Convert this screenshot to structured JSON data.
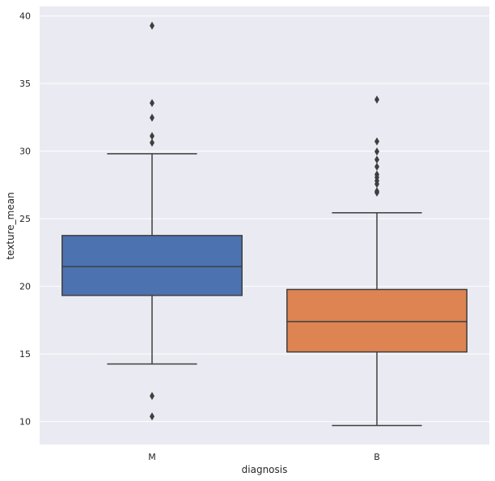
{
  "chart_data": {
    "type": "box",
    "title": "",
    "xlabel": "diagnosis",
    "ylabel": "texture_mean",
    "categories": [
      "M",
      "B"
    ],
    "ylim": [
      8.3,
      40.7
    ],
    "yticks": [
      10,
      15,
      20,
      25,
      30,
      35,
      40
    ],
    "grid": true,
    "colors": {
      "M": "#4c72b0",
      "B": "#dd8452",
      "background": "#eaeaf2",
      "grid": "#ffffff",
      "line": "#3f3f3f"
    },
    "series": [
      {
        "category": "M",
        "whisker_low": 14.26,
        "q1": 19.33,
        "median": 21.46,
        "q3": 23.76,
        "whisker_high": 29.81,
        "outliers": [
          39.28,
          33.56,
          32.47,
          31.12,
          30.62,
          11.89,
          10.38
        ]
      },
      {
        "category": "B",
        "whisker_low": 9.71,
        "q1": 15.15,
        "median": 17.39,
        "q3": 19.77,
        "whisker_high": 25.44,
        "outliers": [
          33.81,
          30.72,
          29.97,
          29.37,
          28.85,
          28.27,
          28.06,
          27.81,
          27.57,
          27.04,
          26.93
        ]
      }
    ]
  }
}
